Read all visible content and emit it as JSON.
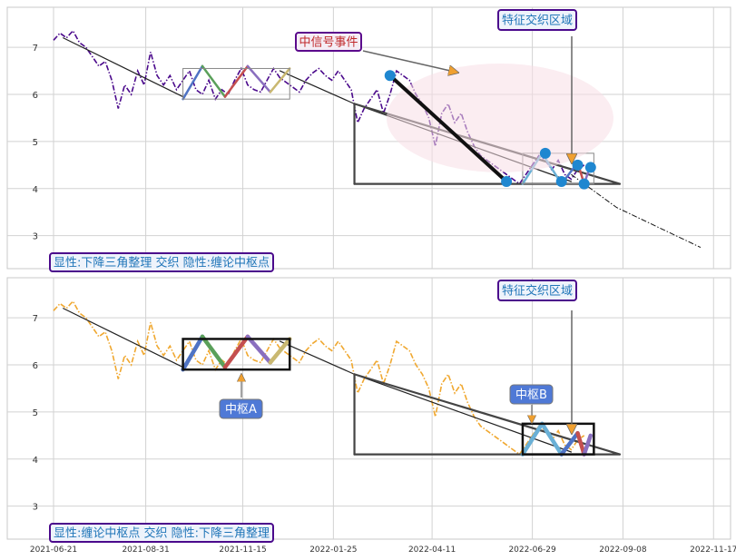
{
  "chart_data": [
    {
      "type": "line",
      "panel": "top",
      "x_ticks": [
        "2021-06-21",
        "2021-08-31",
        "2021-11-15",
        "2022-01-25",
        "2022-04-11",
        "2022-06-29",
        "2022-09-08",
        "2022-11-17"
      ],
      "y_ticks": [
        3,
        4,
        5,
        6,
        7
      ],
      "ylim": [
        2.3,
        7.85
      ],
      "grid": true,
      "series": [
        {
          "style": "dash-dot",
          "color": "#4b0a8c",
          "points": [
            [
              0,
              7.15
            ],
            [
              2,
              7.3
            ],
            [
              4,
              7.2
            ],
            [
              6,
              7.35
            ],
            [
              8,
              7.1
            ],
            [
              10,
              7.0
            ],
            [
              12,
              6.8
            ],
            [
              14,
              6.6
            ],
            [
              16,
              6.7
            ],
            [
              18,
              6.3
            ],
            [
              20,
              5.7
            ],
            [
              22,
              6.2
            ],
            [
              24,
              6.0
            ],
            [
              26,
              6.5
            ],
            [
              28,
              6.2
            ],
            [
              30,
              6.9
            ],
            [
              32,
              6.4
            ],
            [
              34,
              6.2
            ],
            [
              36,
              6.4
            ],
            [
              38,
              6.1
            ],
            [
              40,
              6.3
            ],
            [
              42,
              6.5
            ],
            [
              44,
              6.1
            ],
            [
              46,
              6.0
            ],
            [
              48,
              6.3
            ],
            [
              50,
              5.9
            ],
            [
              52,
              6.1
            ],
            [
              54,
              6.0
            ],
            [
              56,
              6.3
            ],
            [
              58,
              6.55
            ],
            [
              60,
              6.2
            ],
            [
              62,
              6.1
            ],
            [
              64,
              6.05
            ],
            [
              66,
              6.3
            ],
            [
              68,
              6.55
            ],
            [
              70,
              6.35
            ],
            [
              72,
              6.25
            ],
            [
              74,
              6.15
            ],
            [
              76,
              6.05
            ],
            [
              78,
              6.3
            ],
            [
              80,
              6.45
            ],
            [
              82,
              6.55
            ],
            [
              84,
              6.4
            ],
            [
              86,
              6.3
            ],
            [
              88,
              6.5
            ],
            [
              90,
              6.3
            ],
            [
              92,
              6.1
            ],
            [
              94,
              5.4
            ],
            [
              96,
              5.7
            ],
            [
              98,
              5.9
            ],
            [
              100,
              6.1
            ],
            [
              102,
              5.6
            ],
            [
              104,
              6.0
            ],
            [
              106,
              6.5
            ],
            [
              108,
              6.4
            ],
            [
              110,
              6.3
            ],
            [
              112,
              6.0
            ],
            [
              114,
              5.8
            ],
            [
              116,
              5.5
            ],
            [
              118,
              4.9
            ],
            [
              120,
              5.6
            ],
            [
              122,
              5.8
            ],
            [
              124,
              5.4
            ],
            [
              126,
              5.6
            ],
            [
              128,
              5.2
            ],
            [
              130,
              4.9
            ],
            [
              132,
              4.7
            ],
            [
              134,
              4.6
            ],
            [
              136,
              4.5
            ],
            [
              138,
              4.4
            ],
            [
              140,
              4.3
            ],
            [
              142,
              4.2
            ],
            [
              144,
              4.1
            ],
            [
              146,
              4.3
            ],
            [
              148,
              4.5
            ],
            [
              150,
              4.7
            ],
            [
              152,
              4.6
            ],
            [
              154,
              4.4
            ],
            [
              156,
              4.6
            ],
            [
              158,
              4.3
            ],
            [
              160,
              4.2
            ],
            [
              162,
              4.4
            ],
            [
              164,
              4.5
            ]
          ]
        },
        {
          "style": "dash-dot",
          "color": "#111111",
          "points": [
            [
              160,
              4.3
            ],
            [
              174,
              3.6
            ],
            [
              200,
              2.75
            ]
          ]
        }
      ],
      "labels": [
        {
          "role": "annotation",
          "text": "中信号事件",
          "fill": "#f5edf5",
          "stroke": "#5b0a8c",
          "color": "#c0282a"
        },
        {
          "role": "annotation",
          "text": "特征交织区域",
          "fill": "#eef3fb",
          "stroke": "#4b0a8c",
          "color": "#1f75b8"
        },
        {
          "role": "caption",
          "text": "显性:下降三角整理 交织 隐性:缠论中枢点",
          "fill": "#eef3fb",
          "stroke": "#4b0a8c",
          "color": "#1f75b8"
        }
      ]
    },
    {
      "type": "line",
      "panel": "bottom",
      "x_ticks": [
        "2021-06-21",
        "2021-08-31",
        "2021-11-15",
        "2022-01-25",
        "2022-04-11",
        "2022-06-29",
        "2022-09-08",
        "2022-11-17"
      ],
      "y_ticks": [
        3,
        4,
        5,
        6,
        7
      ],
      "ylim": [
        2.3,
        7.85
      ],
      "grid": true,
      "series": [
        {
          "style": "dash-dot",
          "color": "#f0a830",
          "points": [
            [
              0,
              7.15
            ],
            [
              2,
              7.3
            ],
            [
              4,
              7.2
            ],
            [
              6,
              7.35
            ],
            [
              8,
              7.1
            ],
            [
              10,
              7.0
            ],
            [
              12,
              6.8
            ],
            [
              14,
              6.6
            ],
            [
              16,
              6.7
            ],
            [
              18,
              6.3
            ],
            [
              20,
              5.7
            ],
            [
              22,
              6.2
            ],
            [
              24,
              6.0
            ],
            [
              26,
              6.5
            ],
            [
              28,
              6.2
            ],
            [
              30,
              6.9
            ],
            [
              32,
              6.4
            ],
            [
              34,
              6.2
            ],
            [
              36,
              6.4
            ],
            [
              38,
              6.1
            ],
            [
              40,
              6.3
            ],
            [
              42,
              6.5
            ],
            [
              44,
              6.1
            ],
            [
              46,
              6.0
            ],
            [
              48,
              6.3
            ],
            [
              50,
              5.9
            ],
            [
              52,
              6.1
            ],
            [
              54,
              6.0
            ],
            [
              56,
              6.3
            ],
            [
              58,
              6.55
            ],
            [
              60,
              6.2
            ],
            [
              62,
              6.1
            ],
            [
              64,
              6.05
            ],
            [
              66,
              6.3
            ],
            [
              68,
              6.55
            ],
            [
              70,
              6.35
            ],
            [
              72,
              6.25
            ],
            [
              74,
              6.15
            ],
            [
              76,
              6.05
            ],
            [
              78,
              6.3
            ],
            [
              80,
              6.45
            ],
            [
              82,
              6.55
            ],
            [
              84,
              6.4
            ],
            [
              86,
              6.3
            ],
            [
              88,
              6.5
            ],
            [
              90,
              6.3
            ],
            [
              92,
              6.1
            ],
            [
              94,
              5.4
            ],
            [
              96,
              5.7
            ],
            [
              98,
              5.9
            ],
            [
              100,
              6.1
            ],
            [
              102,
              5.6
            ],
            [
              104,
              6.0
            ],
            [
              106,
              6.5
            ],
            [
              108,
              6.4
            ],
            [
              110,
              6.3
            ],
            [
              112,
              6.0
            ],
            [
              114,
              5.8
            ],
            [
              116,
              5.5
            ],
            [
              118,
              4.9
            ],
            [
              120,
              5.6
            ],
            [
              122,
              5.8
            ],
            [
              124,
              5.4
            ],
            [
              126,
              5.6
            ],
            [
              128,
              5.2
            ],
            [
              130,
              4.9
            ],
            [
              132,
              4.7
            ],
            [
              134,
              4.6
            ],
            [
              136,
              4.5
            ],
            [
              138,
              4.4
            ],
            [
              140,
              4.3
            ],
            [
              142,
              4.2
            ],
            [
              144,
              4.1
            ],
            [
              146,
              4.3
            ],
            [
              148,
              4.5
            ],
            [
              150,
              4.7
            ],
            [
              152,
              4.6
            ],
            [
              154,
              4.4
            ],
            [
              156,
              4.6
            ],
            [
              158,
              4.3
            ],
            [
              160,
              4.2
            ],
            [
              162,
              4.4
            ],
            [
              164,
              4.5
            ]
          ]
        }
      ],
      "labels": [
        {
          "role": "annotation",
          "text": "特征交织区域",
          "fill": "#eef3fb",
          "stroke": "#4b0a8c",
          "color": "#1f75b8"
        },
        {
          "role": "callout",
          "text": "中枢A",
          "fill": "#4f79d6",
          "color": "#ffffff"
        },
        {
          "role": "callout",
          "text": "中枢B",
          "fill": "#4f79d6",
          "color": "#ffffff"
        },
        {
          "role": "caption",
          "text": "显性:缠论中枢点 交织 隐性:下降三角整理",
          "fill": "#eef3fb",
          "stroke": "#4b0a8c",
          "color": "#1f75b8"
        }
      ]
    }
  ]
}
